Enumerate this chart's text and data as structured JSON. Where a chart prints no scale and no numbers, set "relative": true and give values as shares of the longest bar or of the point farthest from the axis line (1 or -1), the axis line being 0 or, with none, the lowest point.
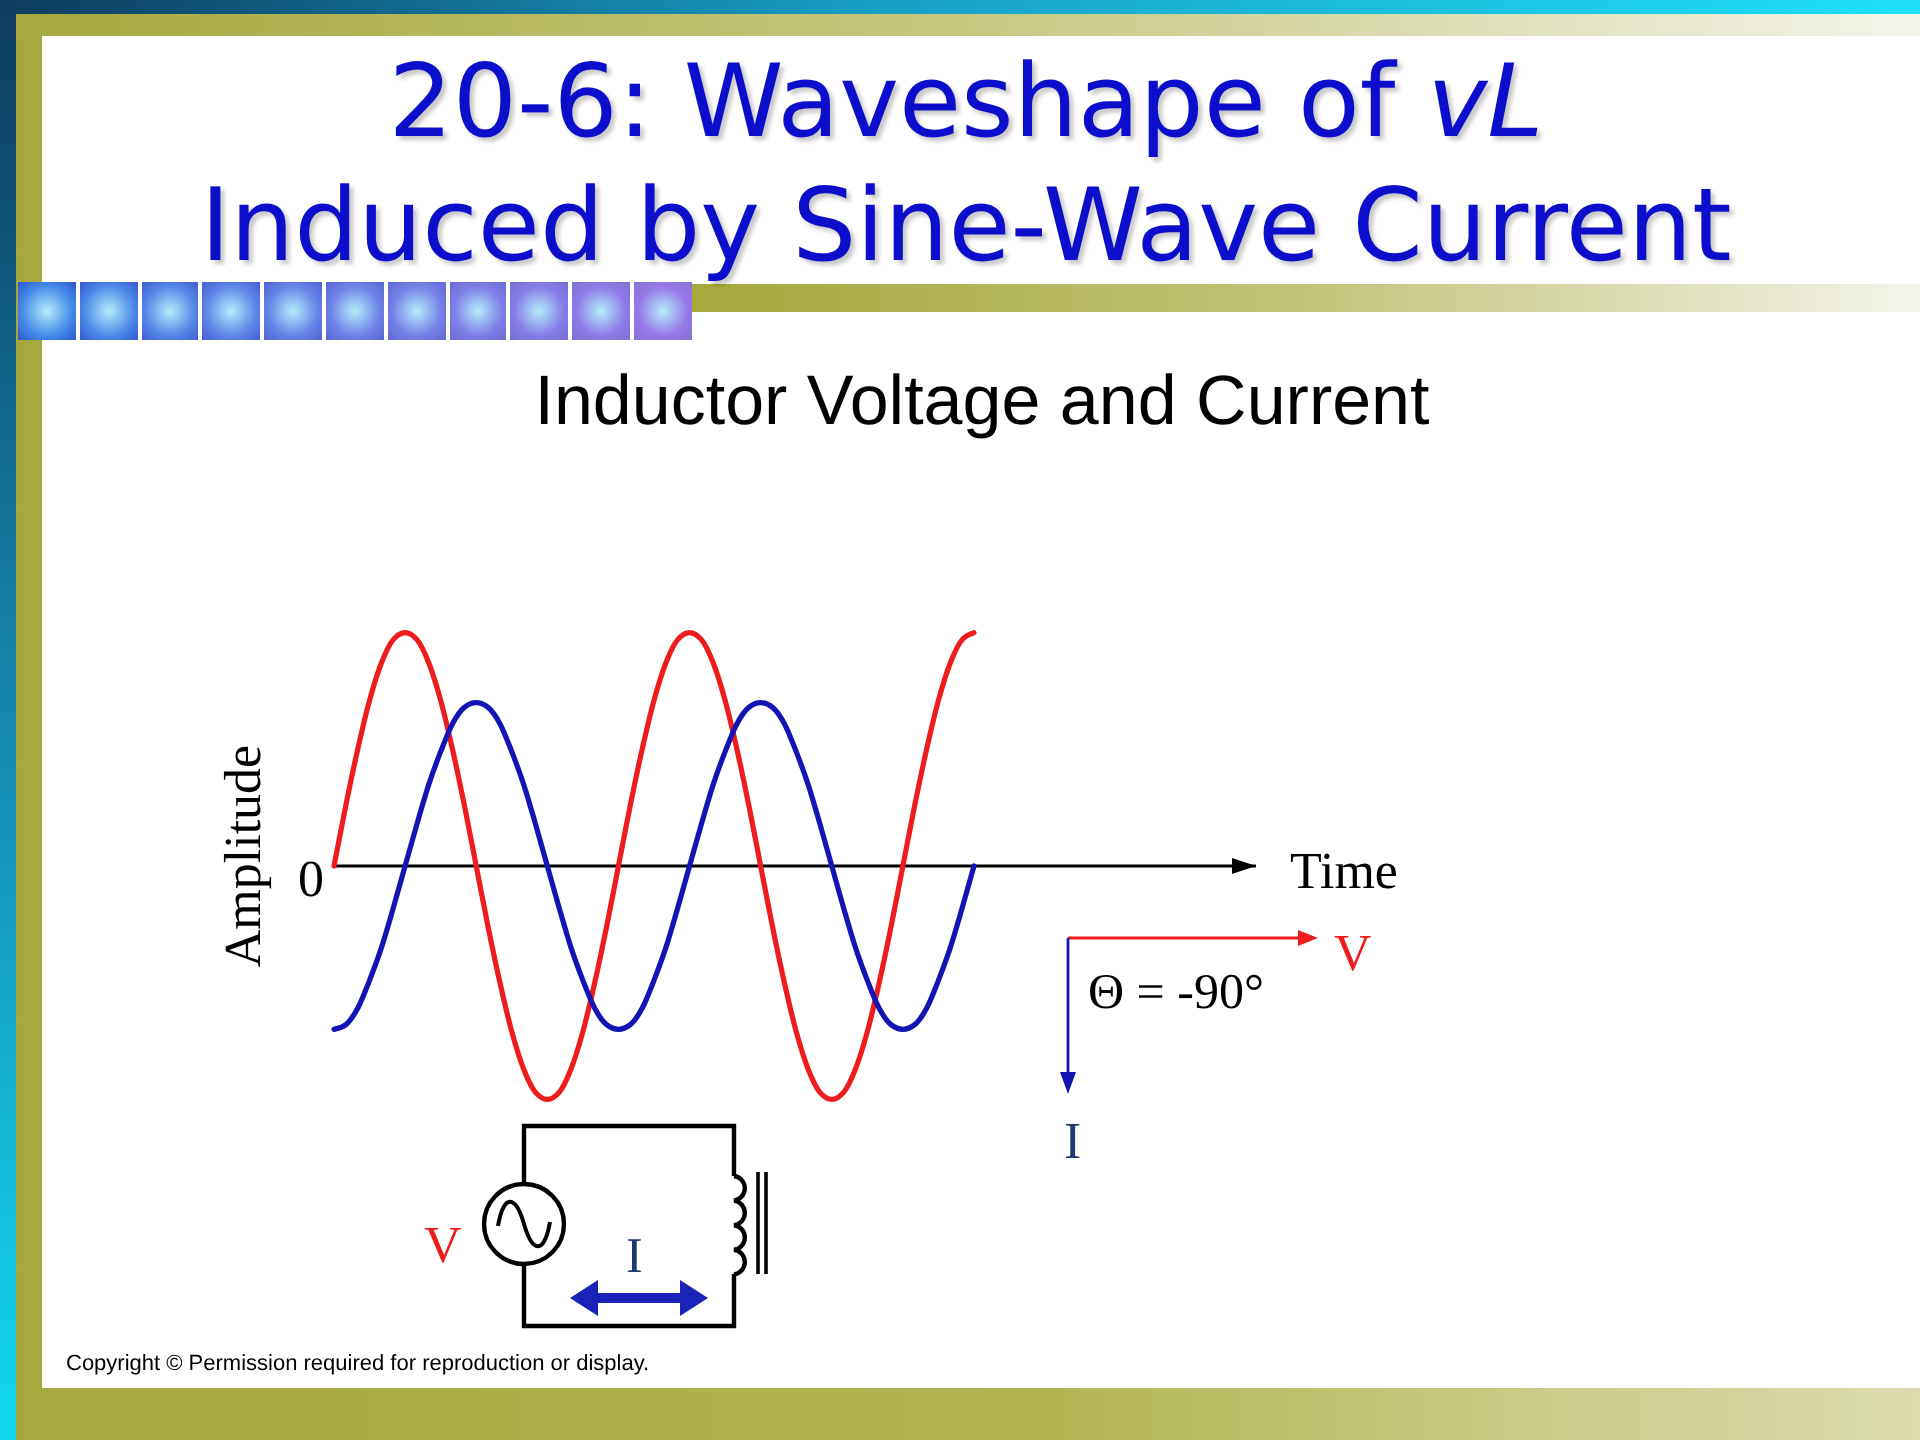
{
  "chart_data": {
    "type": "line",
    "title": "20-6: Waveshape of vL\nInduced by Sine-Wave Current",
    "subtitle": "Inductor Voltage and Current",
    "ylabel": "Amplitude",
    "relative": true,
    "tick_labels": false,
    "categories": [
      null,
      null,
      null,
      null,
      null,
      null,
      null,
      null,
      null,
      null,
      null,
      null,
      null,
      null,
      null,
      null,
      null,
      null,
      null,
      null,
      null,
      null,
      null,
      null,
      null,
      null,
      null,
      null,
      null,
      null,
      null,
      null,
      null,
      null,
      null,
      null,
      null,
      null,
      null,
      null,
      null,
      null,
      null,
      null,
      null,
      null,
      null,
      null,
      null,
      null,
      null,
      null,
      null,
      null,
      null
    ],
    "series": [
      {
        "color": "#ee1c1c",
        "values": [
          0,
          0.26,
          0.5,
          0.71,
          0.87,
          0.97,
          1,
          0.97,
          0.87,
          0.71,
          0.5,
          0.26,
          0,
          -0.26,
          -0.5,
          -0.71,
          -0.87,
          -0.97,
          -1,
          -0.97,
          -0.87,
          -0.71,
          -0.5,
          -0.26,
          0,
          0.26,
          0.5,
          0.71,
          0.87,
          0.97,
          1,
          0.97,
          0.87,
          0.71,
          0.5,
          0.26,
          0,
          -0.26,
          -0.5,
          -0.71,
          -0.87,
          -0.97,
          -1,
          -0.97,
          -0.87,
          -0.71,
          -0.5,
          -0.26,
          0,
          0.26,
          0.5,
          0.71,
          0.87,
          0.97,
          1
        ]
      },
      {
        "color": "#1414b4",
        "values": [
          -0.7,
          -0.68,
          -0.61,
          -0.49,
          -0.35,
          -0.18,
          0,
          0.18,
          0.35,
          0.49,
          0.61,
          0.68,
          0.7,
          0.68,
          0.61,
          0.49,
          0.35,
          0.18,
          0,
          -0.18,
          -0.35,
          -0.49,
          -0.61,
          -0.68,
          -0.7,
          -0.68,
          -0.61,
          -0.49,
          -0.35,
          -0.18,
          0,
          0.18,
          0.35,
          0.49,
          0.61,
          0.68,
          0.7,
          0.68,
          0.61,
          0.49,
          0.35,
          0.18,
          0,
          -0.18,
          -0.35,
          -0.49,
          -0.61,
          -0.68,
          -0.7,
          -0.68,
          -0.61,
          -0.49,
          -0.35,
          -0.18,
          0
        ]
      }
    ],
    "ref_lines": [
      {
        "axis": "y",
        "value": 0,
        "label": "0",
        "color": "#000000"
      }
    ],
    "annotations": [
      "Time",
      "Θ = -90°",
      "V",
      "I",
      "V",
      "I",
      "Copyright © Permission required for reproduction or display."
    ]
  }
}
